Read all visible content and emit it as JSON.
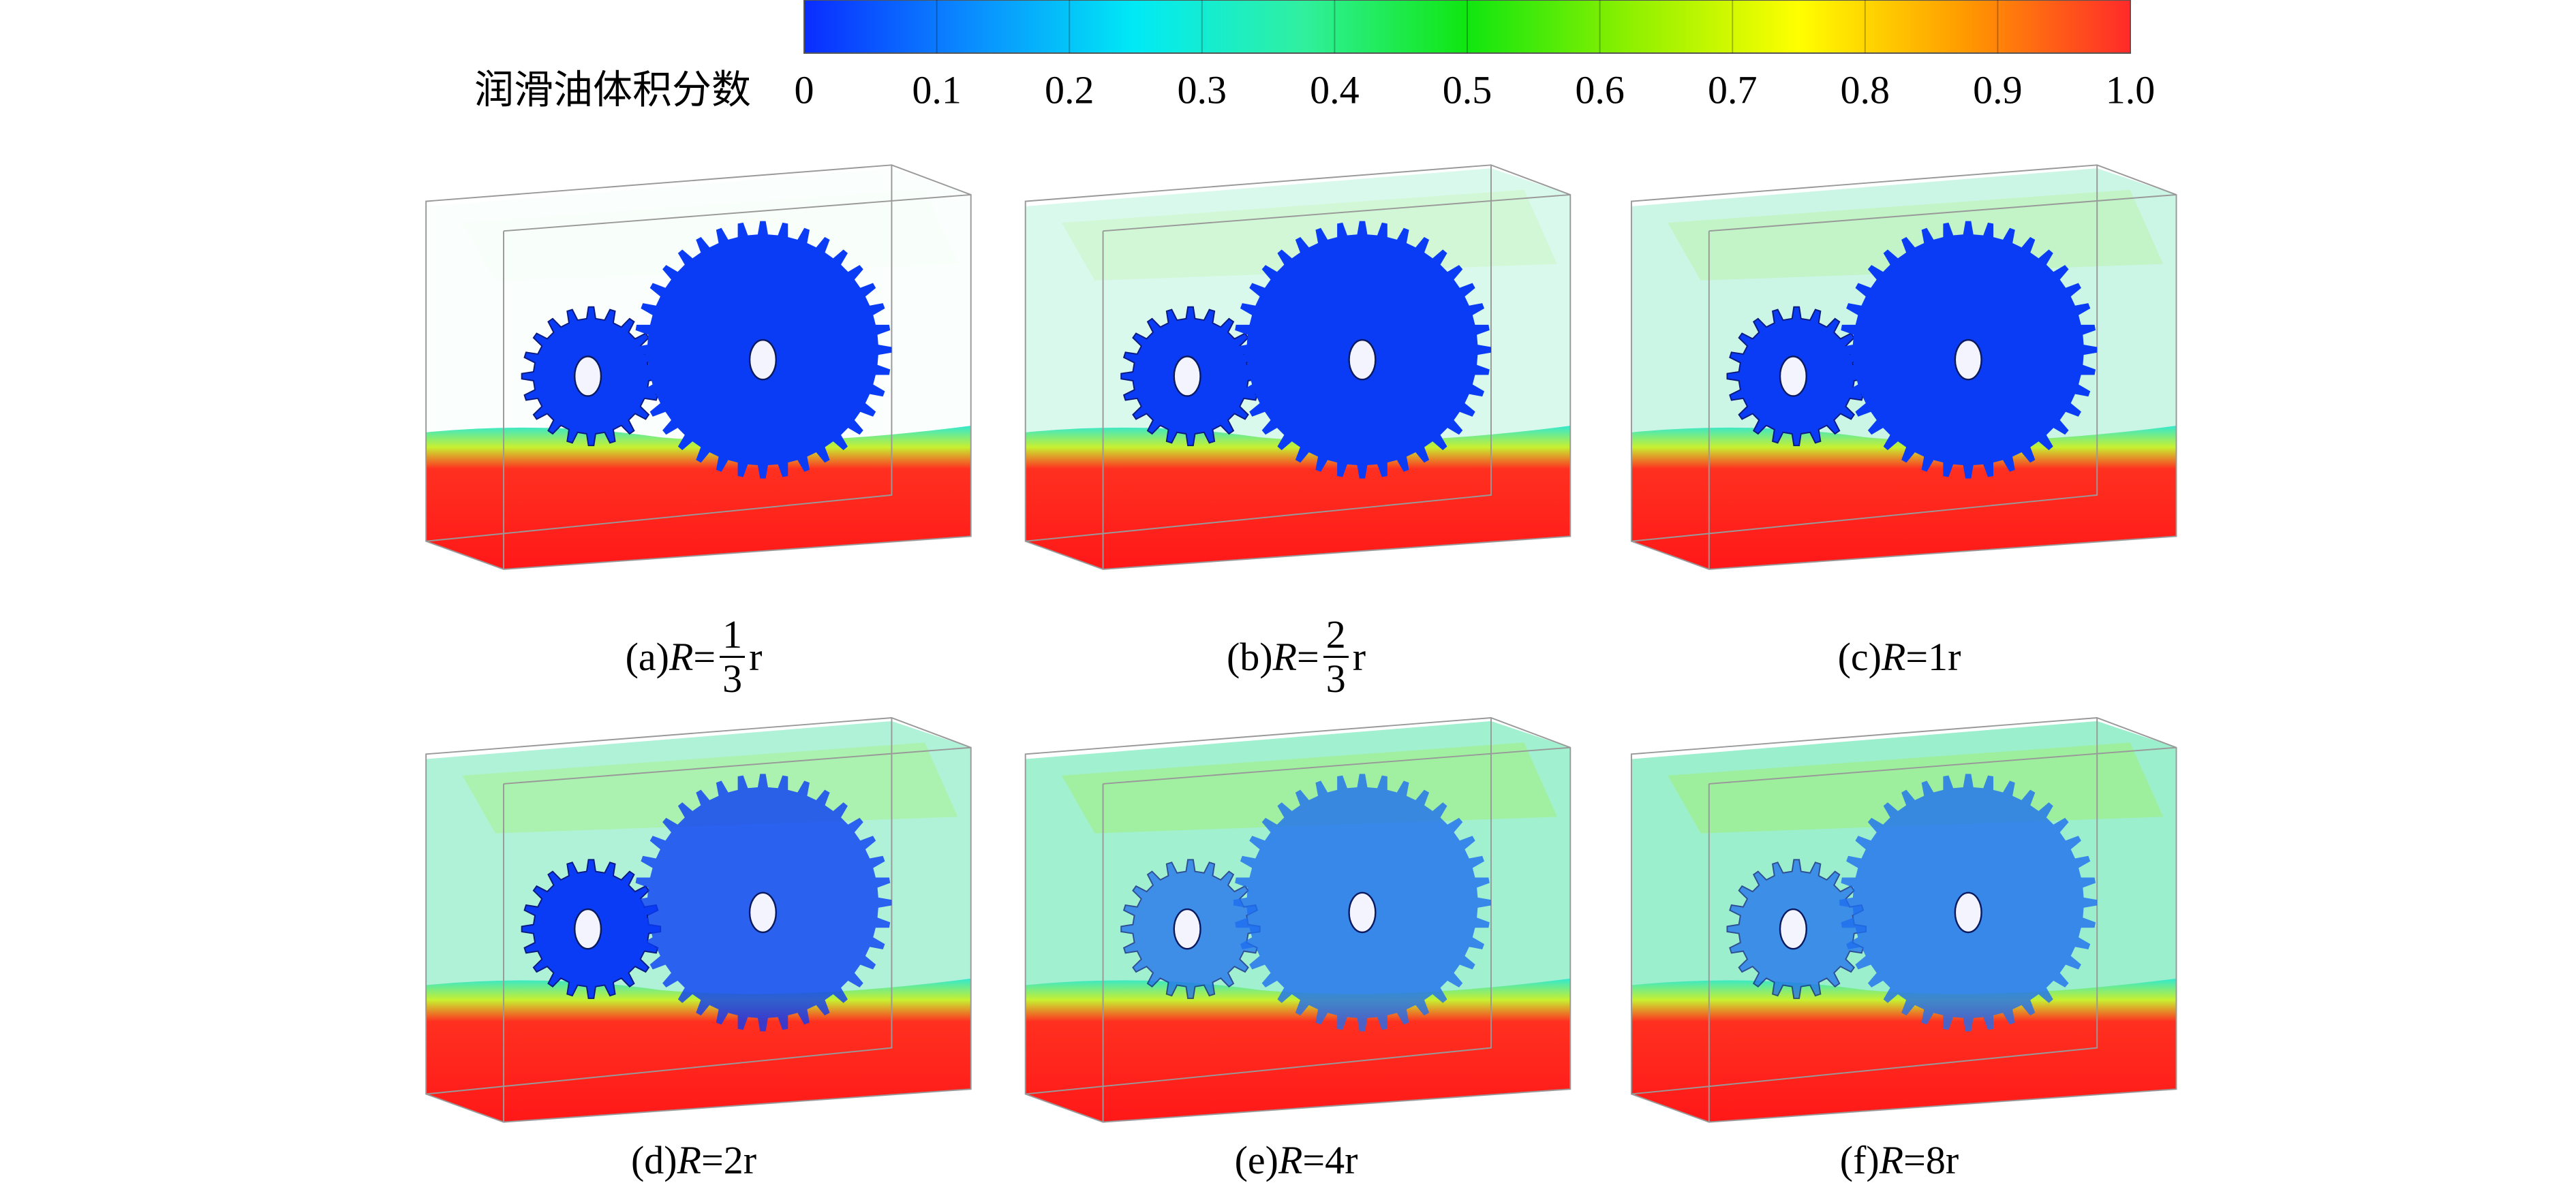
{
  "colorbar": {
    "label": "润滑油体积分数",
    "ticks": [
      "0",
      "0.1",
      "0.2",
      "0.3",
      "0.4",
      "0.5",
      "0.6",
      "0.7",
      "0.8",
      "0.9",
      "1.0"
    ],
    "colors": [
      "#0a2cff",
      "#0a8cff",
      "#00eaf5",
      "#30f0a0",
      "#10e610",
      "#90f000",
      "#ffff00",
      "#ff9a00",
      "#ff2a2a"
    ]
  },
  "panels": [
    {
      "label": "(a)",
      "variable": "R",
      "relation": "=",
      "numerator": "1",
      "denominator": "3",
      "unit": "r"
    },
    {
      "label": "(b)",
      "variable": "R",
      "relation": "=",
      "numerator": "2",
      "denominator": "3",
      "unit": "r"
    },
    {
      "label": "(c)",
      "variable": "R",
      "relation": "=",
      "value": "1",
      "unit": "r"
    },
    {
      "label": "(d)",
      "variable": "R",
      "relation": "=",
      "value": "2",
      "unit": "r"
    },
    {
      "label": "(e)",
      "variable": "R",
      "relation": "=",
      "value": "4",
      "unit": "r"
    },
    {
      "label": "(f)",
      "variable": "R",
      "relation": "=",
      "value": "8",
      "unit": "r"
    }
  ]
}
